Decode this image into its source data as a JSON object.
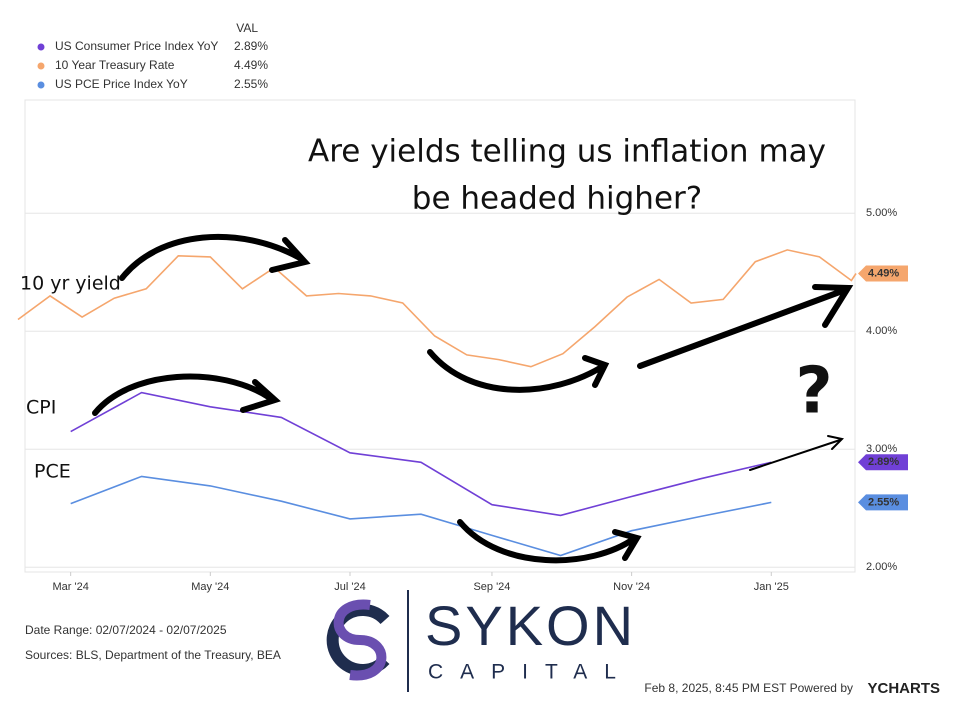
{
  "chart_data": {
    "type": "line",
    "annotations": [
      "Are yields telling us inflation may",
      "be headed higher?",
      "10 yr yield",
      "CPI",
      "PCE",
      "?"
    ],
    "legend_header": "VAL",
    "xlim": [
      "2024-02-07",
      "2025-02-07"
    ],
    "xticks": [
      {
        "value": "2024-03-01",
        "label": "Mar '24"
      },
      {
        "value": "2024-05-01",
        "label": "May '24"
      },
      {
        "value": "2024-07-01",
        "label": "Jul '24"
      },
      {
        "value": "2024-09-01",
        "label": "Sep '24"
      },
      {
        "value": "2024-11-01",
        "label": "Nov '24"
      },
      {
        "value": "2025-01-01",
        "label": "Jan '25"
      }
    ],
    "ylim": [
      1.96,
      5.96
    ],
    "yticks": [
      {
        "value": 2,
        "label": "2.00%"
      },
      {
        "value": 3,
        "label": "3.00%"
      },
      {
        "value": 4,
        "label": "4.00%"
      },
      {
        "value": 5,
        "label": "5.00%"
      }
    ],
    "grid": true,
    "series": [
      {
        "name": "US Consumer Price Index YoY",
        "color": "#7040d6",
        "last_label": "2.89%",
        "x": [
          "2024-03-01",
          "2024-04-01",
          "2024-05-01",
          "2024-06-01",
          "2024-07-01",
          "2024-08-01",
          "2024-09-01",
          "2024-10-01",
          "2024-11-01",
          "2024-12-01",
          "2025-01-01"
        ],
        "values": [
          3.15,
          3.48,
          3.36,
          3.27,
          2.97,
          2.89,
          2.53,
          2.44,
          2.6,
          2.75,
          2.89
        ]
      },
      {
        "name": "10 Year Treasury Rate",
        "color": "#f5a66d",
        "last_label": "4.49%",
        "x": [
          "2024-02-07",
          "2024-02-21",
          "2024-03-06",
          "2024-03-20",
          "2024-04-03",
          "2024-04-17",
          "2024-05-01",
          "2024-05-15",
          "2024-05-29",
          "2024-06-12",
          "2024-06-26",
          "2024-07-10",
          "2024-07-24",
          "2024-08-07",
          "2024-08-21",
          "2024-09-04",
          "2024-09-18",
          "2024-10-02",
          "2024-10-16",
          "2024-10-30",
          "2024-11-13",
          "2024-11-27",
          "2024-12-11",
          "2024-12-25",
          "2025-01-08",
          "2025-01-22",
          "2025-02-05",
          "2025-02-07"
        ],
        "values": [
          4.1,
          4.3,
          4.12,
          4.28,
          4.36,
          4.64,
          4.63,
          4.36,
          4.54,
          4.3,
          4.32,
          4.3,
          4.24,
          3.96,
          3.8,
          3.76,
          3.7,
          3.81,
          4.04,
          4.29,
          4.44,
          4.24,
          4.27,
          4.59,
          4.69,
          4.63,
          4.43,
          4.49
        ]
      },
      {
        "name": "US PCE Price Index YoY",
        "color": "#5a8ee0",
        "last_label": "2.55%",
        "x": [
          "2024-03-01",
          "2024-04-01",
          "2024-05-01",
          "2024-06-01",
          "2024-07-01",
          "2024-08-01",
          "2024-09-01",
          "2024-10-01",
          "2024-11-01",
          "2024-12-01",
          "2025-01-01"
        ],
        "values": [
          2.54,
          2.77,
          2.69,
          2.56,
          2.41,
          2.45,
          2.27,
          2.1,
          2.31,
          2.43,
          2.55
        ]
      }
    ]
  },
  "footer": {
    "date_range": "Date Range: 02/07/2024 - 02/07/2025",
    "sources": "Sources: BLS, Department of the Treasury, BEA",
    "timestamp": "Feb 8, 2025, 8:45 PM EST Powered by",
    "brand": "YCHARTS"
  },
  "logo": {
    "name": "SYKON",
    "sub": "CAPITAL"
  }
}
